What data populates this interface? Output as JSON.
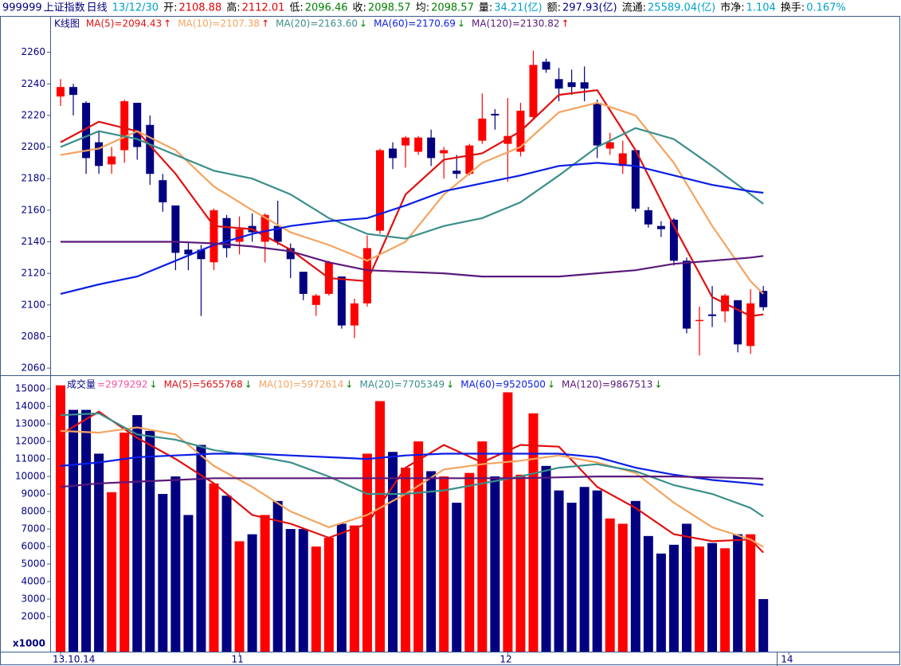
{
  "header": {
    "code": "999999",
    "name": "上证指数",
    "period": "日线",
    "items": [
      {
        "label": "",
        "value": "13/12/30",
        "color": "#00a0c8"
      },
      {
        "label": "开:",
        "value": "2108.88",
        "color": "#e00000"
      },
      {
        "label": "高:",
        "value": "2112.01",
        "color": "#e00000"
      },
      {
        "label": "低:",
        "value": "2096.46",
        "color": "#008000"
      },
      {
        "label": "收:",
        "value": "2098.57",
        "color": "#008000"
      },
      {
        "label": "均:",
        "value": "2098.57",
        "color": "#008000"
      },
      {
        "label": "量:",
        "value": "34.21(亿)",
        "color": "#00a0c8"
      },
      {
        "label": "额:",
        "value": "297.93(亿)",
        "color": "#000080"
      },
      {
        "label": "流通:",
        "value": "25589.04(亿)",
        "color": "#00a0c8"
      },
      {
        "label": "市净:",
        "value": "1.104",
        "color": "#00a0c8"
      },
      {
        "label": "换手:",
        "value": "0.167%",
        "color": "#00a0c8"
      }
    ]
  },
  "chart_data": [
    {
      "type": "candlestick",
      "title": "K线图",
      "up_color": "#ff0000",
      "down_color": "#000080",
      "open": [
        2232,
        2238,
        2228,
        2203,
        2189,
        2198,
        2228,
        2214,
        2179,
        2163,
        2135,
        2135,
        2127,
        2155,
        2140,
        2150,
        2140,
        2150,
        2136,
        2121,
        2100,
        2107,
        2118,
        2087,
        2101,
        2147,
        2199,
        2201,
        2197,
        2206,
        2196,
        2185,
        2183,
        2204,
        2221,
        2202,
        2197,
        2219,
        2254,
        2243,
        2241,
        2241,
        2228,
        2199,
        2188,
        2198,
        2160,
        2150,
        2154,
        2128,
        2090,
        2094,
        2096,
        2103,
        2074,
        2108.88
      ],
      "high": [
        2243,
        2240,
        2229,
        2210,
        2200,
        2230,
        2228,
        2220,
        2183,
        2163,
        2140,
        2138,
        2161,
        2157,
        2156,
        2158,
        2158,
        2166,
        2139,
        2121,
        2107,
        2128,
        2118,
        2104,
        2144,
        2199,
        2203,
        2207,
        2207,
        2211,
        2200,
        2195,
        2202,
        2234,
        2224,
        2231,
        2228,
        2261,
        2256,
        2250,
        2249,
        2251,
        2230,
        2209,
        2204,
        2198,
        2162,
        2153,
        2155,
        2130,
        2099,
        2112,
        2107,
        2103,
        2110,
        2112.01
      ],
      "low": [
        2226,
        2220,
        2183,
        2183,
        2183,
        2190,
        2192,
        2176,
        2159,
        2122,
        2122,
        2093,
        2122,
        2130,
        2132,
        2140,
        2127,
        2138,
        2117,
        2103,
        2093,
        2106,
        2085,
        2079,
        2099,
        2145,
        2186,
        2187,
        2195,
        2188,
        2180,
        2180,
        2182,
        2202,
        2211,
        2178,
        2194,
        2218,
        2247,
        2229,
        2233,
        2229,
        2193,
        2195,
        2183,
        2159,
        2149,
        2143,
        2125,
        2082,
        2068,
        2086,
        2089,
        2070,
        2069,
        2096.46
      ],
      "close": [
        2238,
        2233,
        2193,
        2188,
        2194,
        2229,
        2200,
        2183,
        2165,
        2133,
        2132,
        2129,
        2160,
        2136,
        2148,
        2146,
        2157,
        2140,
        2129,
        2107,
        2106,
        2127,
        2087,
        2101,
        2136,
        2198,
        2193,
        2206,
        2206,
        2193,
        2198,
        2183,
        2201,
        2218,
        2220,
        2207,
        2223,
        2252,
        2249,
        2237,
        2238,
        2237,
        2201,
        2203,
        2196,
        2161,
        2151,
        2148,
        2128,
        2085,
        2090.5,
        2093,
        2106,
        2075,
        2101,
        2098.57
      ],
      "ylim": [
        2056,
        2282
      ],
      "yticks": [
        2060,
        2080,
        2100,
        2120,
        2140,
        2160,
        2180,
        2200,
        2220,
        2240,
        2260
      ],
      "series": [
        {
          "name": "MA(5)=2094.43",
          "arrow": "↑",
          "arrow_color": "#e00000",
          "color": "#e01010",
          "x": [
            0,
            3,
            6,
            9,
            12,
            15,
            18,
            21,
            24,
            27,
            30,
            33,
            36,
            39,
            42,
            45,
            48,
            51,
            54,
            55
          ],
          "values": [
            2203,
            2216,
            2210,
            2183,
            2150,
            2148,
            2135,
            2117,
            2115,
            2170,
            2192,
            2196,
            2210,
            2233,
            2236,
            2198,
            2150,
            2105,
            2093,
            2094
          ]
        },
        {
          "name": "MA(10)=2107.38",
          "arrow": "↑",
          "arrow_color": "#e00000",
          "color": "#f4a460",
          "x": [
            0,
            3,
            6,
            9,
            12,
            15,
            18,
            21,
            24,
            27,
            30,
            33,
            36,
            39,
            42,
            45,
            48,
            51,
            54,
            55
          ],
          "values": [
            2195,
            2199,
            2210,
            2198,
            2175,
            2160,
            2146,
            2138,
            2128,
            2140,
            2170,
            2190,
            2200,
            2222,
            2228,
            2220,
            2190,
            2150,
            2115,
            2107
          ]
        },
        {
          "name": "MA(20)=2163.60",
          "arrow": "↓",
          "arrow_color": "#008000",
          "color": "#3a8f8a",
          "x": [
            0,
            3,
            6,
            9,
            12,
            15,
            18,
            21,
            24,
            27,
            30,
            33,
            36,
            39,
            42,
            45,
            48,
            51,
            54,
            55
          ],
          "values": [
            2200,
            2210,
            2205,
            2195,
            2185,
            2180,
            2170,
            2155,
            2145,
            2142,
            2150,
            2155,
            2165,
            2182,
            2200,
            2212,
            2205,
            2188,
            2170,
            2164
          ]
        },
        {
          "name": "MA(60)=2170.69",
          "arrow": "↓",
          "arrow_color": "#008000",
          "color": "#0a1ee6",
          "x": [
            0,
            3,
            6,
            9,
            12,
            15,
            18,
            21,
            24,
            27,
            30,
            33,
            36,
            39,
            42,
            45,
            48,
            51,
            54,
            55
          ],
          "values": [
            2107,
            2113,
            2118,
            2128,
            2138,
            2145,
            2150,
            2153,
            2155,
            2163,
            2172,
            2177,
            2182,
            2188,
            2190,
            2188,
            2182,
            2176,
            2172,
            2171
          ]
        },
        {
          "name": "MA(120)=2130.82",
          "arrow": "↑",
          "arrow_color": "#e00000",
          "color": "#5a1a7a",
          "x": [
            0,
            3,
            6,
            9,
            12,
            15,
            18,
            21,
            24,
            27,
            30,
            33,
            36,
            39,
            42,
            45,
            48,
            51,
            54,
            55
          ],
          "values": [
            2140,
            2140,
            2140,
            2140,
            2139,
            2137,
            2134,
            2127,
            2122,
            2121,
            2120,
            2118,
            2118,
            2118,
            2120,
            2122,
            2126,
            2128,
            2130,
            2131
          ]
        }
      ]
    },
    {
      "type": "bar",
      "title": "成交量",
      "current": "=2979292",
      "current_arrow": "↓",
      "current_color": "#ff4fa0",
      "unit_label": "x1000",
      "values": [
        15200,
        13800,
        13800,
        11300,
        9100,
        12500,
        13500,
        12600,
        9000,
        10000,
        7800,
        11800,
        9600,
        8900,
        6300,
        6700,
        7800,
        8600,
        7000,
        7000,
        6000,
        6500,
        7300,
        7200,
        11300,
        14300,
        11400,
        10500,
        12000,
        10300,
        10000,
        8500,
        10200,
        12000,
        10000,
        14800,
        10100,
        13600,
        10600,
        9200,
        8500,
        9400,
        9200,
        7600,
        7300,
        8600,
        6600,
        5600,
        6100,
        7300,
        6000,
        6200,
        5900,
        6700,
        6700,
        3000
      ],
      "ylim": [
        0,
        15640
      ],
      "yticks": [
        2000,
        3000,
        4000,
        5000,
        6000,
        7000,
        8000,
        9000,
        10000,
        11000,
        12000,
        13000,
        14000,
        15000
      ],
      "xticks": [
        {
          "value": 0,
          "label": "13.10.14"
        },
        {
          "value": 14,
          "label": "11"
        },
        {
          "value": 35,
          "label": "12"
        },
        {
          "value": 57,
          "label": "14"
        }
      ],
      "series": [
        {
          "name": "MA(5)=5655768",
          "arrow": "↓",
          "arrow_color": "#008000",
          "color": "#e01010",
          "x": [
            0,
            3,
            6,
            9,
            12,
            15,
            18,
            21,
            24,
            27,
            30,
            33,
            36,
            39,
            42,
            45,
            48,
            51,
            54,
            55
          ],
          "values": [
            12400,
            13700,
            12200,
            11000,
            9600,
            7800,
            7300,
            6500,
            7300,
            10500,
            11800,
            10800,
            11800,
            11700,
            9400,
            8200,
            6700,
            6300,
            6400,
            5656
          ]
        },
        {
          "name": "MA(10)=5972614",
          "arrow": "↓",
          "arrow_color": "#008000",
          "color": "#f4a460",
          "x": [
            0,
            3,
            6,
            9,
            12,
            15,
            18,
            21,
            24,
            27,
            30,
            33,
            36,
            39,
            42,
            45,
            48,
            51,
            54,
            55
          ],
          "values": [
            12600,
            12500,
            12800,
            12400,
            10600,
            9400,
            8000,
            7100,
            7800,
            9000,
            10400,
            10700,
            10900,
            11200,
            10800,
            10200,
            8500,
            7100,
            6400,
            5973
          ]
        },
        {
          "name": "MA(20)=7705349",
          "arrow": "↓",
          "arrow_color": "#008000",
          "color": "#3a8f8a",
          "x": [
            0,
            3,
            6,
            9,
            12,
            15,
            18,
            21,
            24,
            27,
            30,
            33,
            36,
            39,
            42,
            45,
            48,
            51,
            54,
            55
          ],
          "values": [
            13500,
            13600,
            12400,
            12100,
            11500,
            11200,
            10800,
            10000,
            9000,
            9000,
            9200,
            9600,
            10000,
            10500,
            10700,
            10300,
            9500,
            9000,
            8200,
            7705
          ]
        },
        {
          "name": "MA(60)=9520500",
          "arrow": "↓",
          "arrow_color": "#008000",
          "color": "#0a1ee6",
          "x": [
            0,
            3,
            6,
            9,
            12,
            15,
            18,
            21,
            24,
            27,
            30,
            33,
            36,
            39,
            42,
            45,
            48,
            51,
            54,
            55
          ],
          "values": [
            10600,
            10800,
            11100,
            11200,
            11300,
            11300,
            11200,
            11100,
            11000,
            11200,
            11300,
            11300,
            11300,
            11300,
            11100,
            10500,
            10100,
            9800,
            9600,
            9520
          ]
        },
        {
          "name": "MA(120)=9867513",
          "arrow": "↓",
          "arrow_color": "#008000",
          "color": "#5a1a7a",
          "x": [
            0,
            3,
            6,
            9,
            12,
            15,
            18,
            21,
            24,
            27,
            30,
            33,
            36,
            39,
            42,
            45,
            48,
            51,
            54,
            55
          ],
          "values": [
            9400,
            9600,
            9700,
            9800,
            9900,
            9900,
            9900,
            9900,
            9900,
            9900,
            9900,
            9900,
            9900,
            9950,
            10000,
            10000,
            10000,
            9950,
            9900,
            9868
          ]
        }
      ]
    }
  ]
}
